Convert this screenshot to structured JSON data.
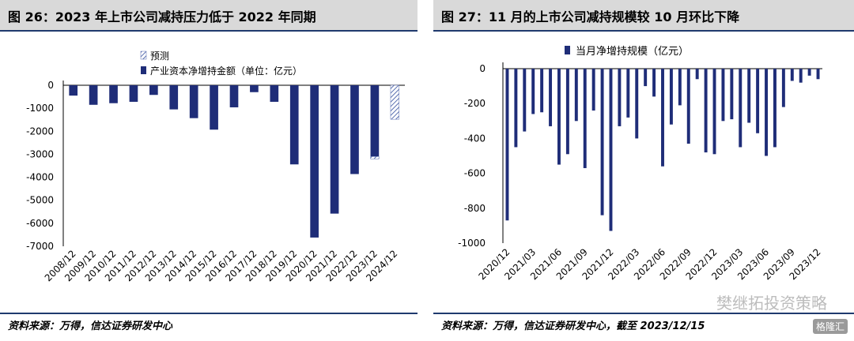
{
  "charts": [
    {
      "title": "图 26：2023 年上市公司减持压力低于 2022 年同期",
      "source": "资料来源：万得，信达证券研发中心",
      "chart_data": {
        "type": "bar",
        "categories": [
          "2008/12",
          "2009/12",
          "2010/12",
          "2011/12",
          "2012/12",
          "2013/12",
          "2014/12",
          "2015/12",
          "2016/12",
          "2017/12",
          "2018/12",
          "2019/12",
          "2020/12",
          "2021/12",
          "2022/12",
          "2023/12",
          "2024/12"
        ],
        "series": [
          {
            "name": "产业资本净增持金额（单位：亿元）",
            "values": [
              -450,
              -850,
              -780,
              -720,
              -420,
              -1050,
              -1430,
              -1930,
              -960,
              -300,
              -720,
              -3440,
              -6620,
              -5580,
              -3860,
              -3100,
              null
            ]
          },
          {
            "name": "预测",
            "values": [
              null,
              null,
              null,
              null,
              null,
              null,
              null,
              null,
              null,
              null,
              null,
              null,
              null,
              null,
              null,
              -3200,
              -1480
            ]
          }
        ],
        "yticks": [
          0,
          -1000,
          -2000,
          -3000,
          -4000,
          -5000,
          -6000,
          -7000
        ],
        "ylim": [
          -7000,
          0
        ],
        "legend": "top-left",
        "grid": false
      }
    },
    {
      "title": "图 27：11 月的上市公司减持规模较 10 月环比下降",
      "source": "资料来源：万得，信达证券研发中心，截至 2023/12/15",
      "chart_data": {
        "type": "bar",
        "tick_labels": [
          "2020/12",
          "2021/03",
          "2021/06",
          "2021/09",
          "2021/12",
          "2022/03",
          "2022/06",
          "2022/09",
          "2022/12",
          "2023/03",
          "2023/06",
          "2023/09",
          "2023/12"
        ],
        "x": [
          "2020/12",
          "2021/01",
          "2021/02",
          "2021/03",
          "2021/04",
          "2021/05",
          "2021/06",
          "2021/07",
          "2021/08",
          "2021/09",
          "2021/10",
          "2021/11",
          "2021/12",
          "2022/01",
          "2022/02",
          "2022/03",
          "2022/04",
          "2022/05",
          "2022/06",
          "2022/07",
          "2022/08",
          "2022/09",
          "2022/10",
          "2022/11",
          "2022/12",
          "2023/01",
          "2023/02",
          "2023/03",
          "2023/04",
          "2023/05",
          "2023/06",
          "2023/07",
          "2023/08",
          "2023/09",
          "2023/10",
          "2023/11",
          "2023/12"
        ],
        "series": [
          {
            "name": "当月净增持规模（亿元）",
            "values": [
              -870,
              -450,
              -360,
              -260,
              -250,
              -330,
              -550,
              -490,
              -300,
              -570,
              -240,
              -840,
              -930,
              -330,
              -280,
              -400,
              -100,
              -160,
              -560,
              -320,
              -210,
              -430,
              -60,
              -480,
              -490,
              -300,
              -290,
              -450,
              -310,
              -370,
              -500,
              -450,
              -220,
              -70,
              -80,
              -40,
              -60
            ]
          }
        ],
        "yticks": [
          0,
          -200,
          -400,
          -600,
          -800,
          -1000
        ],
        "ylim": [
          -1000,
          0
        ],
        "legend": "top",
        "grid": false
      }
    }
  ],
  "watermark": {
    "text": "樊继拓投资策略",
    "badge": "格隆汇"
  },
  "colors": {
    "bar": "#1f2d78",
    "axis": "#000000",
    "title_bg": "#d9d9d9",
    "rule": "#1f3a6e"
  }
}
